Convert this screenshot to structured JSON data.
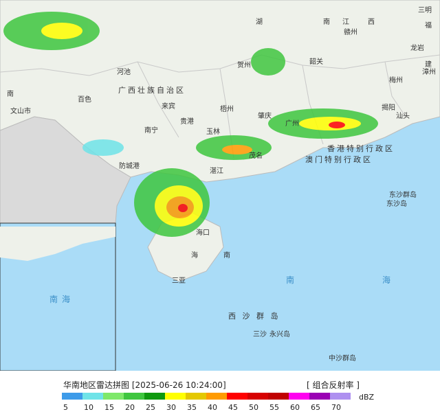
{
  "map": {
    "labels": [
      "三明",
      "湖",
      "南",
      "江",
      "西",
      "赣州",
      "福",
      "龙岩",
      "建",
      "漳州",
      "梅州",
      "韶关",
      "河池",
      "贺州",
      "广西壮族自治区",
      "百色",
      "南",
      "来宾",
      "梧州",
      "贵港",
      "文山市",
      "南宁",
      "玉林",
      "防城港",
      "肇庆",
      "广州",
      "揭阳",
      "汕头",
      "香港特别行政区",
      "澳门特别行政区",
      "湛江",
      "茂名",
      "海口",
      "南",
      "海",
      "三亚",
      "东沙群岛",
      "东沙岛",
      "南",
      "海",
      "西 沙 群 岛",
      "三沙",
      "永兴岛",
      "中沙群岛",
      "南海"
    ]
  },
  "legend": {
    "title": "华南地区雷达拼图 [2025-06-26 10:24:00]",
    "product": "[ 组合反射率 ]",
    "unit": "dBZ",
    "bins": [
      {
        "value": 5,
        "color": "#3d9be9"
      },
      {
        "value": 10,
        "color": "#6fe3e8"
      },
      {
        "value": 15,
        "color": "#7ee86a"
      },
      {
        "value": 20,
        "color": "#3fc63f"
      },
      {
        "value": 25,
        "color": "#0f990f"
      },
      {
        "value": 30,
        "color": "#ffff00"
      },
      {
        "value": 35,
        "color": "#e4c800"
      },
      {
        "value": 40,
        "color": "#ff9b00"
      },
      {
        "value": 45,
        "color": "#ff0000"
      },
      {
        "value": 50,
        "color": "#d70000"
      },
      {
        "value": 55,
        "color": "#c00000"
      },
      {
        "value": 60,
        "color": "#ff00f0"
      },
      {
        "value": 65,
        "color": "#9a00b4"
      },
      {
        "value": 70,
        "color": "#ae90f0"
      }
    ]
  }
}
